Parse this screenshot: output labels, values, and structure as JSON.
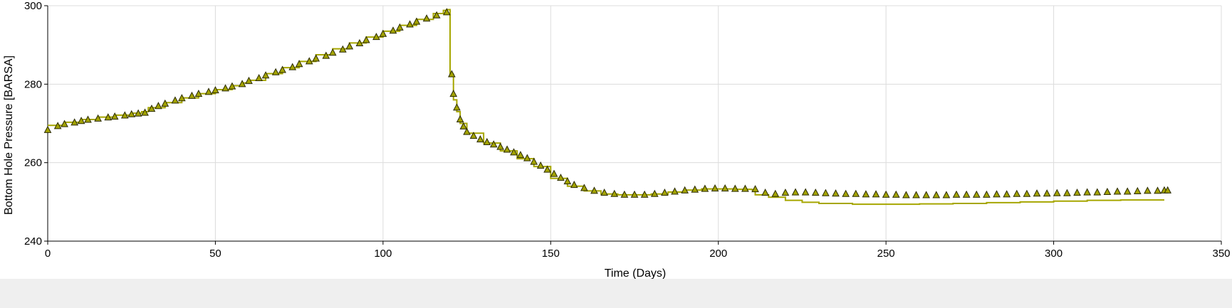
{
  "chart_data": {
    "type": "line",
    "xlabel": "Time (Days)",
    "ylabel": "Bottom Hole Pressure [BARSA]",
    "xlim": [
      0,
      350
    ],
    "ylim": [
      240,
      300
    ],
    "xticks": [
      0,
      50,
      100,
      150,
      200,
      250,
      300,
      350
    ],
    "yticks": [
      240,
      260,
      280,
      300
    ],
    "grid": true,
    "colors": {
      "line": "#a6a600",
      "marker_fill": "#a3a300",
      "marker_stroke": "#2a2a00"
    },
    "series": [
      {
        "kind": "step-line",
        "x": [
          0,
          5,
          10,
          15,
          20,
          25,
          28,
          30,
          35,
          40,
          45,
          50,
          55,
          58,
          60,
          65,
          70,
          75,
          80,
          85,
          90,
          95,
          100,
          105,
          110,
          115,
          118,
          119,
          120,
          121,
          122,
          123,
          125,
          130,
          135,
          140,
          145,
          150,
          155,
          160,
          165,
          170,
          175,
          180,
          185,
          190,
          195,
          200,
          205,
          210,
          211,
          215,
          220,
          225,
          230,
          240,
          250,
          260,
          270,
          280,
          290,
          300,
          310,
          320,
          330,
          333
        ],
        "y": [
          269.5,
          270.3,
          271.0,
          271.6,
          272.1,
          272.6,
          273.0,
          274.0,
          275.3,
          276.5,
          277.6,
          278.6,
          279.6,
          280.3,
          281.0,
          282.7,
          284.2,
          285.8,
          287.5,
          289.0,
          290.5,
          292.0,
          293.5,
          295.0,
          296.5,
          298.0,
          298.8,
          299.0,
          282.5,
          276.0,
          273.0,
          270.0,
          267.5,
          265.0,
          263.0,
          261.0,
          259.0,
          256.0,
          254.0,
          252.8,
          252.0,
          251.8,
          251.8,
          252.0,
          252.5,
          253.0,
          253.3,
          253.3,
          253.2,
          253.1,
          251.8,
          251.2,
          250.4,
          249.9,
          249.6,
          249.4,
          249.4,
          249.5,
          249.6,
          249.8,
          250.0,
          250.2,
          250.4,
          250.5,
          250.5,
          250.5
        ]
      },
      {
        "kind": "triangle-markers",
        "x": [
          0,
          3,
          5,
          8,
          10,
          12,
          15,
          18,
          20,
          23,
          25,
          27,
          29,
          31,
          33,
          35,
          38,
          40,
          43,
          45,
          48,
          50,
          53,
          55,
          58,
          60,
          63,
          65,
          68,
          70,
          73,
          75,
          78,
          80,
          83,
          85,
          88,
          90,
          93,
          95,
          98,
          100,
          103,
          105,
          108,
          110,
          113,
          116,
          119,
          120.5,
          121,
          122,
          123,
          124,
          125,
          127,
          129,
          131,
          133,
          135,
          137,
          139,
          141,
          143,
          145,
          147,
          149,
          151,
          153,
          155,
          157,
          160,
          163,
          166,
          169,
          172,
          175,
          178,
          181,
          184,
          187,
          190,
          193,
          196,
          199,
          202,
          205,
          208,
          211,
          214,
          217,
          220,
          223,
          226,
          229,
          232,
          235,
          238,
          241,
          244,
          247,
          250,
          253,
          256,
          259,
          262,
          265,
          268,
          271,
          274,
          277,
          280,
          283,
          286,
          289,
          292,
          295,
          298,
          301,
          304,
          307,
          310,
          313,
          316,
          319,
          322,
          325,
          328,
          331,
          333,
          334
        ],
        "y": [
          268.3,
          269.3,
          269.8,
          270.2,
          270.6,
          270.9,
          271.2,
          271.5,
          271.7,
          272.0,
          272.3,
          272.5,
          272.7,
          273.7,
          274.4,
          275.0,
          275.8,
          276.4,
          277.0,
          277.5,
          278.0,
          278.4,
          278.9,
          279.4,
          280.0,
          280.8,
          281.5,
          282.2,
          283.0,
          283.6,
          284.3,
          285.1,
          285.8,
          286.5,
          287.2,
          288.0,
          288.8,
          289.6,
          290.4,
          291.2,
          292.0,
          292.8,
          293.6,
          294.4,
          295.2,
          295.9,
          296.7,
          297.5,
          298.3,
          282.5,
          277.5,
          274.0,
          271.0,
          269.2,
          267.8,
          266.8,
          265.9,
          265.2,
          264.6,
          264.0,
          263.3,
          262.6,
          261.9,
          261.1,
          260.2,
          259.2,
          258.2,
          257.1,
          256.1,
          255.2,
          254.3,
          253.5,
          252.8,
          252.3,
          252.0,
          251.8,
          251.8,
          251.8,
          252.0,
          252.3,
          252.6,
          252.9,
          253.1,
          253.3,
          253.4,
          253.4,
          253.3,
          253.3,
          253.2,
          252.3,
          252.0,
          252.3,
          252.4,
          252.4,
          252.3,
          252.2,
          252.1,
          252.0,
          252.0,
          251.9,
          251.9,
          251.8,
          251.8,
          251.7,
          251.7,
          251.7,
          251.7,
          251.7,
          251.8,
          251.8,
          251.8,
          251.8,
          251.9,
          251.9,
          252.0,
          252.0,
          252.1,
          252.1,
          252.2,
          252.2,
          252.3,
          252.4,
          252.4,
          252.5,
          252.6,
          252.6,
          252.7,
          252.8,
          252.8,
          252.9,
          252.9
        ]
      }
    ]
  }
}
